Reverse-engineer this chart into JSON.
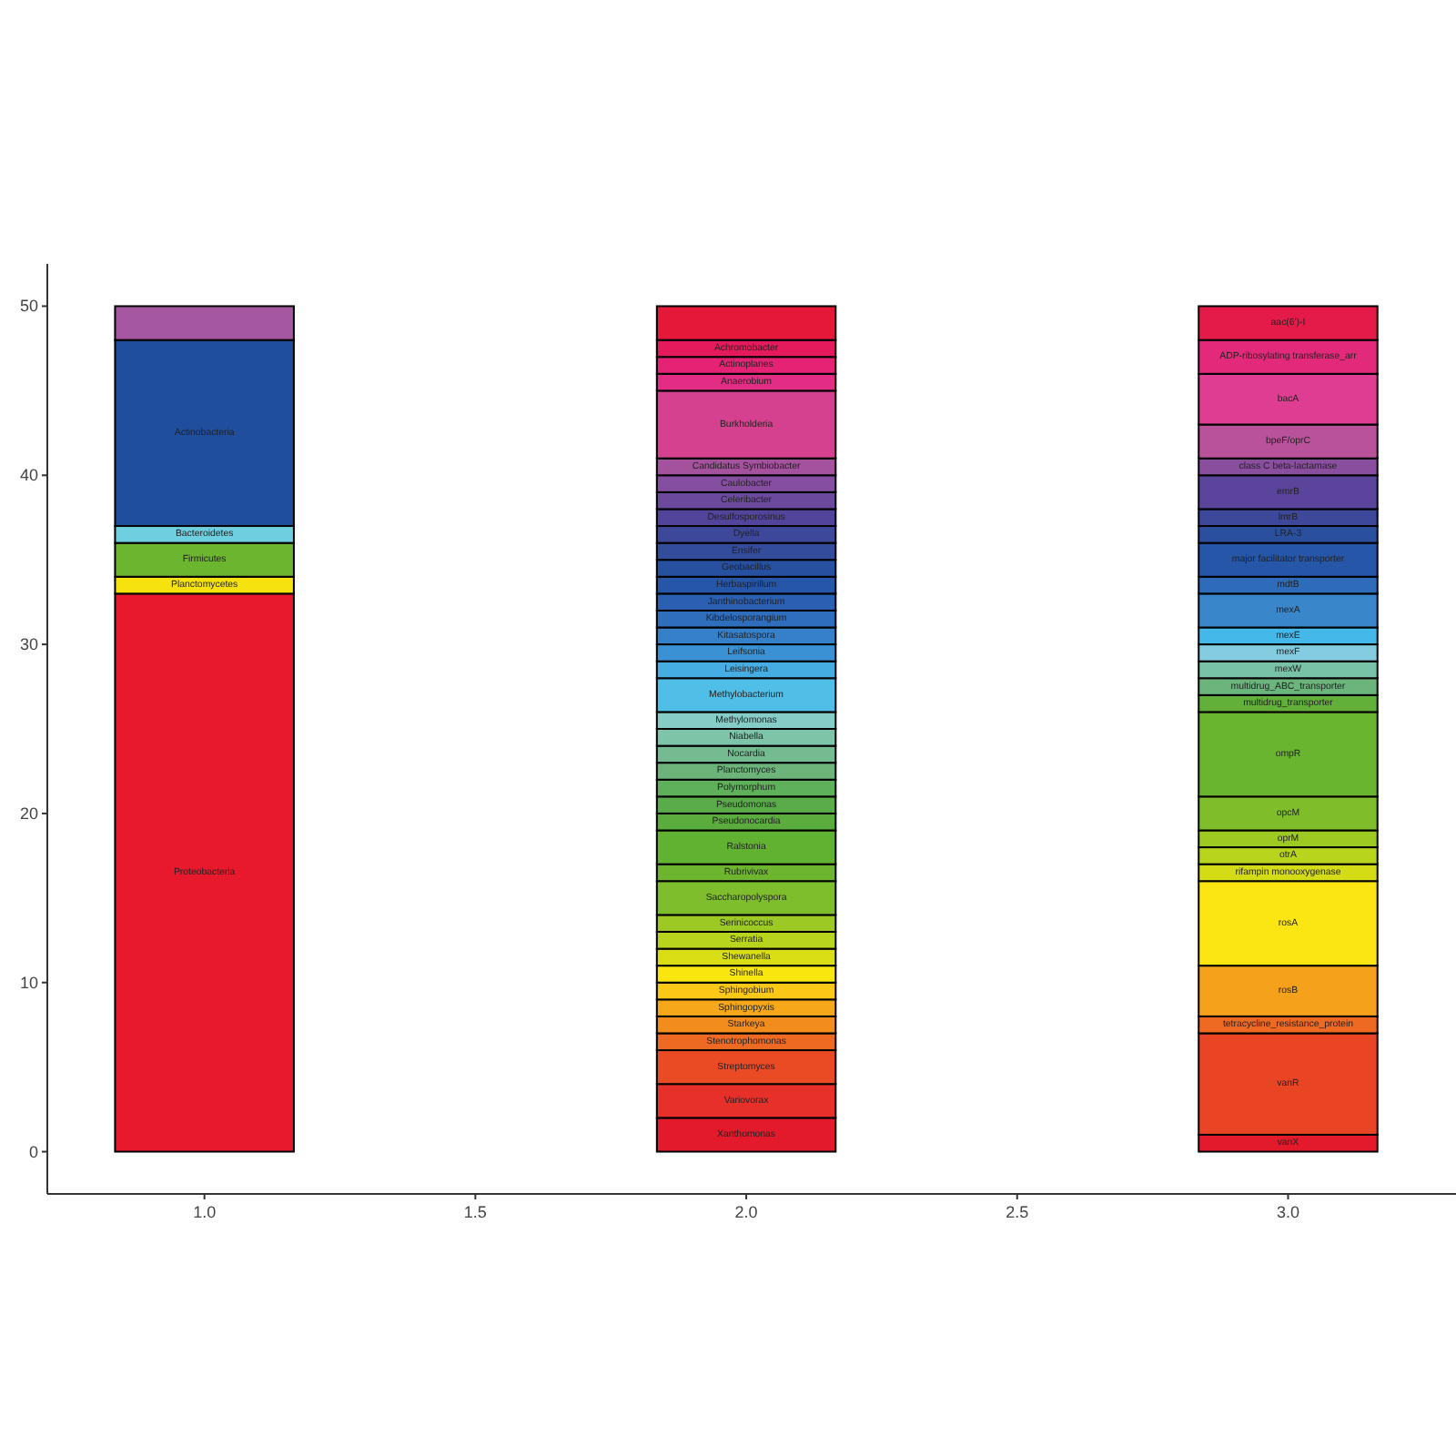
{
  "chart_data": {
    "type": "bar",
    "stacked": true,
    "x": [
      1,
      2,
      3
    ],
    "xlim": [
      0.71,
      3.32
    ],
    "ylim": [
      -2.5,
      52.5
    ],
    "xticks": [
      {
        "value": 1,
        "label": "1.0"
      },
      {
        "value": 1.5,
        "label": "1.5"
      },
      {
        "value": 2,
        "label": "2.0"
      },
      {
        "value": 2.5,
        "label": "2.5"
      },
      {
        "value": 3,
        "label": "3.0"
      }
    ],
    "yticks": [
      0,
      10,
      20,
      30,
      40,
      50
    ],
    "grid": false,
    "series": [
      {
        "name": "Proteobacteria",
        "color": "#e8192c",
        "values": [
          33,
          null,
          null
        ]
      },
      {
        "name": "Planctomycetes",
        "color": "#f5e20f",
        "values": [
          1,
          null,
          null
        ]
      },
      {
        "name": "Firmicutes",
        "color": "#6bb52f",
        "values": [
          2,
          null,
          null
        ]
      },
      {
        "name": "Bacteroidetes",
        "color": "#6ecfe0",
        "values": [
          1,
          null,
          null
        ]
      },
      {
        "name": "Actinobacteria",
        "color": "#1f4e9e",
        "values": [
          11,
          null,
          null
        ]
      },
      {
        "color": "#a657a2",
        "values": [
          2,
          null,
          null
        ]
      },
      {
        "name": "Xanthomonas",
        "color": "#e31a2b",
        "values": [
          null,
          2,
          null
        ]
      },
      {
        "name": "Variovorax",
        "color": "#e8302a",
        "values": [
          null,
          2,
          null
        ]
      },
      {
        "name": "Streptomyces",
        "color": "#ea4b25",
        "values": [
          null,
          2,
          null
        ]
      },
      {
        "name": "Stenotrophomonas",
        "color": "#ee6a22",
        "values": [
          null,
          1,
          null
        ]
      },
      {
        "name": "Starkeya",
        "color": "#f28c1c",
        "values": [
          null,
          1,
          null
        ]
      },
      {
        "name": "Sphingopyxis",
        "color": "#f6a81a",
        "values": [
          null,
          1,
          null
        ]
      },
      {
        "name": "Sphingobium",
        "color": "#fbc817",
        "values": [
          null,
          1,
          null
        ]
      },
      {
        "name": "Shinella",
        "color": "#f9e60f",
        "values": [
          null,
          1,
          null
        ]
      },
      {
        "name": "Shewanella",
        "color": "#d9df14",
        "values": [
          null,
          1,
          null
        ]
      },
      {
        "name": "Serratia",
        "color": "#b8d41c",
        "values": [
          null,
          1,
          null
        ]
      },
      {
        "name": "Serinicoccus",
        "color": "#9cc923",
        "values": [
          null,
          1,
          null
        ]
      },
      {
        "name": "Saccharopolyspora",
        "color": "#7ebd2b",
        "values": [
          null,
          2,
          null
        ]
      },
      {
        "name": "Rubrivivax",
        "color": "#6db52f",
        "values": [
          null,
          1,
          null
        ]
      },
      {
        "name": "Ralstonia",
        "color": "#62b232",
        "values": [
          null,
          2,
          null
        ]
      },
      {
        "name": "Pseudonocardia",
        "color": "#5aac3c",
        "values": [
          null,
          1,
          null
        ]
      },
      {
        "name": "Pseudomonas",
        "color": "#5aab4a",
        "values": [
          null,
          1,
          null
        ]
      },
      {
        "name": "Polymorphum",
        "color": "#5fb05a",
        "values": [
          null,
          1,
          null
        ]
      },
      {
        "name": "Planctomyces",
        "color": "#6cb47a",
        "values": [
          null,
          1,
          null
        ]
      },
      {
        "name": "Nocardia",
        "color": "#74bb92",
        "values": [
          null,
          1,
          null
        ]
      },
      {
        "name": "Niabella",
        "color": "#7dc4a8",
        "values": [
          null,
          1,
          null
        ]
      },
      {
        "name": "Methylomonas",
        "color": "#86cdc8",
        "values": [
          null,
          1,
          null
        ]
      },
      {
        "name": "Methylobacterium",
        "color": "#4fbfe8",
        "values": [
          null,
          2,
          null
        ]
      },
      {
        "name": "Leisingera",
        "color": "#45ade2",
        "values": [
          null,
          1,
          null
        ]
      },
      {
        "name": "Leifsonia",
        "color": "#3a92d4",
        "values": [
          null,
          1,
          null
        ]
      },
      {
        "name": "Kitasatospora",
        "color": "#3580c9",
        "values": [
          null,
          1,
          null
        ]
      },
      {
        "name": "Kibdelosporangium",
        "color": "#2f6dbd",
        "values": [
          null,
          1,
          null
        ]
      },
      {
        "name": "Janthinobacterium",
        "color": "#2a5fb2",
        "values": [
          null,
          1,
          null
        ]
      },
      {
        "name": "Herbaspirillum",
        "color": "#2556a8",
        "values": [
          null,
          1,
          null
        ]
      },
      {
        "name": "Geobacillus",
        "color": "#2750a0",
        "values": [
          null,
          1,
          null
        ]
      },
      {
        "name": "Ensifer",
        "color": "#344c9c",
        "values": [
          null,
          1,
          null
        ]
      },
      {
        "name": "Dyella",
        "color": "#3d489a",
        "values": [
          null,
          1,
          null
        ]
      },
      {
        "name": "Desulfosporosinus",
        "color": "#52449a",
        "values": [
          null,
          1,
          null
        ]
      },
      {
        "name": "Celeribacter",
        "color": "#6b4a9e",
        "values": [
          null,
          1,
          null
        ]
      },
      {
        "name": "Caulobacter",
        "color": "#864ea0",
        "values": [
          null,
          1,
          null
        ]
      },
      {
        "name": "Candidatus Symbiobacter",
        "color": "#a4519e",
        "values": [
          null,
          1,
          null
        ]
      },
      {
        "name": "Burkholderia",
        "color": "#d5408f",
        "values": [
          null,
          4,
          null
        ]
      },
      {
        "name": "Anaerobium",
        "color": "#e32c84",
        "values": [
          null,
          1,
          null
        ]
      },
      {
        "name": "Actinoplanes",
        "color": "#e52274",
        "values": [
          null,
          1,
          null
        ]
      },
      {
        "name": "Achromobacter",
        "color": "#e51a5d",
        "values": [
          null,
          1,
          null
        ]
      },
      {
        "color": "#e5183a",
        "values": [
          null,
          2,
          null
        ]
      },
      {
        "name": "vanX",
        "color": "#e31a2b",
        "values": [
          null,
          null,
          1
        ]
      },
      {
        "name": "vanR",
        "color": "#e94524",
        "values": [
          null,
          null,
          6
        ]
      },
      {
        "name": "tetracycline_resistance_protein",
        "color": "#ee6a22",
        "values": [
          null,
          null,
          1
        ]
      },
      {
        "name": "rosB",
        "color": "#f5a11b",
        "values": [
          null,
          null,
          3
        ]
      },
      {
        "name": "rosA",
        "color": "#fbe512",
        "values": [
          null,
          null,
          5
        ]
      },
      {
        "name": "rifampin monooxygenase",
        "color": "#d4dc16",
        "values": [
          null,
          null,
          1
        ]
      },
      {
        "name": "otrA",
        "color": "#b9d41c",
        "values": [
          null,
          null,
          1
        ]
      },
      {
        "name": "oprM",
        "color": "#9ec822",
        "values": [
          null,
          null,
          1
        ]
      },
      {
        "name": "opcM",
        "color": "#7fbd2a",
        "values": [
          null,
          null,
          2
        ]
      },
      {
        "name": "ompR",
        "color": "#6ab530",
        "values": [
          null,
          null,
          5
        ]
      },
      {
        "name": "multidrug_transporter",
        "color": "#62b03a",
        "values": [
          null,
          null,
          1
        ]
      },
      {
        "name": "multidrug_ABC_transporter",
        "color": "#6bb47c",
        "values": [
          null,
          null,
          1
        ]
      },
      {
        "name": "mexW",
        "color": "#78c2a8",
        "values": [
          null,
          null,
          1
        ]
      },
      {
        "name": "mexF",
        "color": "#84cce0",
        "values": [
          null,
          null,
          1
        ]
      },
      {
        "name": "mexE",
        "color": "#45b8ea",
        "values": [
          null,
          null,
          1
        ]
      },
      {
        "name": "mexA",
        "color": "#3a86cb",
        "values": [
          null,
          null,
          2
        ]
      },
      {
        "name": "mdtB",
        "color": "#2e6cbb",
        "values": [
          null,
          null,
          1
        ]
      },
      {
        "name": "major facilitator transporter",
        "color": "#2556a8",
        "values": [
          null,
          null,
          2
        ]
      },
      {
        "name": "LRA-3",
        "color": "#2b4f9f",
        "values": [
          null,
          null,
          1
        ]
      },
      {
        "name": "lmrB",
        "color": "#3d489a",
        "values": [
          null,
          null,
          1
        ]
      },
      {
        "name": "emrB",
        "color": "#5b449b",
        "values": [
          null,
          null,
          2
        ]
      },
      {
        "name": "class C beta-lactamase",
        "color": "#8a4e9f",
        "values": [
          null,
          null,
          1
        ]
      },
      {
        "name": "bpeF/oprC",
        "color": "#b9529a",
        "values": [
          null,
          null,
          2
        ]
      },
      {
        "name": "bacA",
        "color": "#de3d91",
        "values": [
          null,
          null,
          3
        ]
      },
      {
        "name": "ADP-ribosylating transferase_arr",
        "color": "#e32a7a",
        "values": [
          null,
          null,
          2
        ]
      },
      {
        "name": "aac(6')-I",
        "color": "#e41a48",
        "values": [
          null,
          null,
          2
        ]
      }
    ]
  }
}
